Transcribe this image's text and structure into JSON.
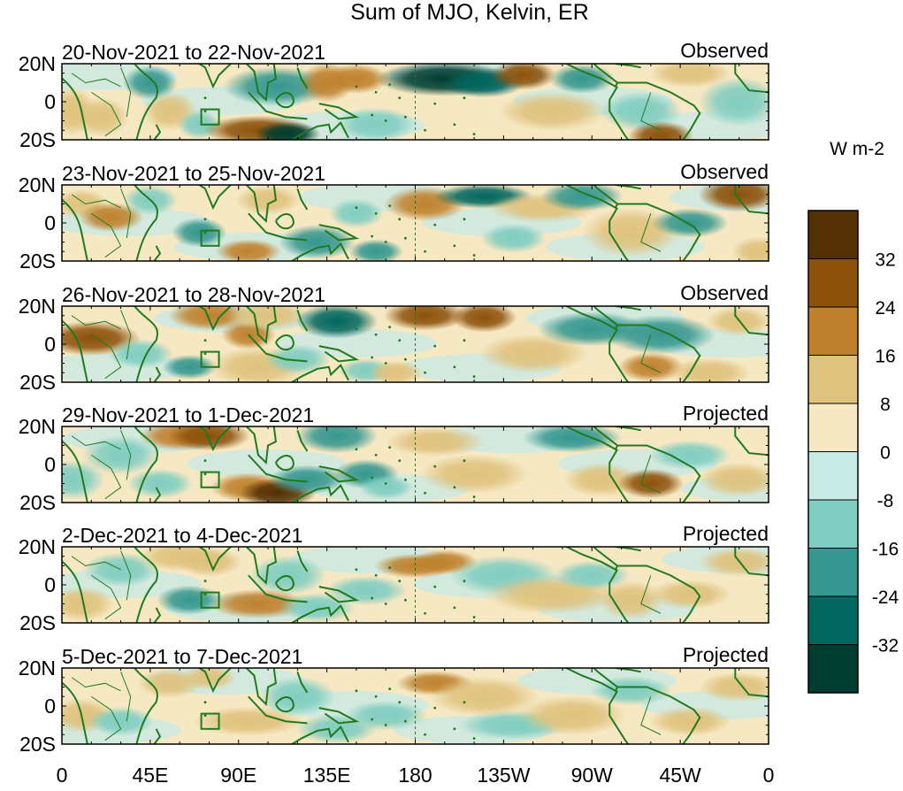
{
  "chart_data": {
    "type": "heatmap",
    "title": "Sum of MJO, Kelvin, ER",
    "units": "W m-2",
    "x_tick_labels": [
      "0",
      "45E",
      "90E",
      "135E",
      "180",
      "135W",
      "90W",
      "45W",
      "0"
    ],
    "x_ticks_deg": [
      0,
      45,
      90,
      135,
      180,
      225,
      270,
      315,
      360
    ],
    "y_tick_labels": [
      "20N",
      "0",
      "20S"
    ],
    "y_ticks_deg": [
      20,
      0,
      -20
    ],
    "xlim": [
      0,
      360
    ],
    "ylim": [
      -20,
      20
    ],
    "reference_line_lon": 180,
    "colorbar": {
      "levels": [
        "32",
        "24",
        "16",
        "8",
        "0",
        "-8",
        "-16",
        "-24",
        "-32"
      ],
      "colors": [
        "#543005",
        "#8c510a",
        "#bf812d",
        "#dfc27d",
        "#f6e8c3",
        "#c7eae5",
        "#80cdc1",
        "#35978f",
        "#01665e",
        "#003c30"
      ]
    },
    "coast_color": "#1f7a1f",
    "panels": [
      {
        "date_range": "20-Nov-2021 to 22-Nov-2021",
        "status": "Observed",
        "blobs": [
          [
            5,
            -5,
            9,
            10,
            0.35
          ],
          [
            20,
            -8,
            10,
            8,
            0.3
          ],
          [
            45,
            10,
            10,
            7,
            -0.45
          ],
          [
            55,
            -5,
            10,
            8,
            0.25
          ],
          [
            70,
            -12,
            8,
            6,
            -0.4
          ],
          [
            100,
            -15,
            20,
            6,
            0.75
          ],
          [
            115,
            -17,
            12,
            5,
            -0.9
          ],
          [
            110,
            8,
            20,
            8,
            -0.45
          ],
          [
            135,
            10,
            10,
            8,
            0.5
          ],
          [
            150,
            12,
            12,
            6,
            0.45
          ],
          [
            160,
            -12,
            15,
            7,
            -0.3
          ],
          [
            195,
            12,
            25,
            7,
            -0.95
          ],
          [
            215,
            10,
            15,
            6,
            -0.7
          ],
          [
            235,
            14,
            12,
            6,
            0.7
          ],
          [
            265,
            12,
            12,
            6,
            -0.5
          ],
          [
            250,
            -5,
            20,
            8,
            0.35
          ],
          [
            295,
            -5,
            15,
            8,
            -0.3
          ],
          [
            305,
            -18,
            12,
            6,
            0.8
          ],
          [
            320,
            15,
            15,
            6,
            0.3
          ],
          [
            345,
            0,
            15,
            10,
            -0.3
          ]
        ]
      },
      {
        "date_range": "23-Nov-2021 to 25-Nov-2021",
        "status": "Observed",
        "blobs": [
          [
            10,
            10,
            10,
            6,
            0.3
          ],
          [
            25,
            3,
            12,
            6,
            0.55
          ],
          [
            45,
            12,
            10,
            6,
            -0.35
          ],
          [
            70,
            -5,
            10,
            6,
            -0.45
          ],
          [
            95,
            -15,
            12,
            5,
            0.6
          ],
          [
            130,
            -10,
            14,
            7,
            -0.45
          ],
          [
            105,
            12,
            12,
            6,
            0.35
          ],
          [
            150,
            5,
            10,
            6,
            -0.35
          ],
          [
            160,
            -15,
            10,
            5,
            -0.55
          ],
          [
            185,
            10,
            15,
            7,
            0.6
          ],
          [
            215,
            14,
            18,
            5,
            -0.8
          ],
          [
            245,
            8,
            20,
            6,
            0.4
          ],
          [
            265,
            14,
            15,
            6,
            -0.55
          ],
          [
            230,
            -8,
            12,
            6,
            -0.35
          ],
          [
            290,
            -5,
            18,
            10,
            0.35
          ],
          [
            320,
            0,
            14,
            6,
            -0.5
          ],
          [
            345,
            15,
            15,
            7,
            0.75
          ],
          [
            355,
            -15,
            10,
            6,
            0.35
          ]
        ]
      },
      {
        "date_range": "26-Nov-2021 to 28-Nov-2021",
        "status": "Observed",
        "blobs": [
          [
            15,
            3,
            18,
            7,
            0.75
          ],
          [
            40,
            -5,
            12,
            6,
            -0.3
          ],
          [
            65,
            -12,
            10,
            5,
            -0.45
          ],
          [
            75,
            15,
            15,
            6,
            0.5
          ],
          [
            95,
            5,
            10,
            6,
            0.55
          ],
          [
            100,
            -12,
            18,
            8,
            0.4
          ],
          [
            105,
            15,
            15,
            6,
            0.35
          ],
          [
            120,
            -8,
            12,
            6,
            -0.4
          ],
          [
            140,
            12,
            15,
            7,
            -0.75
          ],
          [
            155,
            -14,
            10,
            5,
            -0.4
          ],
          [
            170,
            -15,
            10,
            5,
            0.35
          ],
          [
            185,
            15,
            15,
            6,
            0.65
          ],
          [
            215,
            14,
            12,
            6,
            0.7
          ],
          [
            240,
            -5,
            20,
            8,
            0.3
          ],
          [
            270,
            8,
            20,
            7,
            -0.45
          ],
          [
            305,
            5,
            20,
            8,
            -0.5
          ],
          [
            300,
            -12,
            12,
            6,
            0.6
          ],
          [
            330,
            -15,
            15,
            6,
            0.3
          ],
          [
            345,
            12,
            12,
            6,
            0.35
          ]
        ]
      },
      {
        "date_range": "29-Nov-2021 to 1-Dec-2021",
        "status": "Projected",
        "blobs": [
          [
            5,
            -8,
            12,
            8,
            -0.3
          ],
          [
            30,
            5,
            14,
            8,
            -0.25
          ],
          [
            50,
            -10,
            12,
            6,
            -0.3
          ],
          [
            60,
            15,
            15,
            6,
            0.5
          ],
          [
            75,
            15,
            15,
            6,
            0.75
          ],
          [
            95,
            -12,
            14,
            6,
            0.5
          ],
          [
            110,
            -15,
            14,
            6,
            0.85
          ],
          [
            125,
            -8,
            14,
            6,
            -0.45
          ],
          [
            140,
            15,
            15,
            7,
            -0.6
          ],
          [
            155,
            -5,
            12,
            6,
            -0.55
          ],
          [
            165,
            -12,
            10,
            5,
            -0.35
          ],
          [
            190,
            12,
            18,
            6,
            0.35
          ],
          [
            210,
            -5,
            20,
            8,
            0.3
          ],
          [
            260,
            14,
            18,
            6,
            -0.6
          ],
          [
            275,
            -8,
            14,
            7,
            0.4
          ],
          [
            300,
            -10,
            12,
            6,
            0.65
          ],
          [
            320,
            5,
            15,
            6,
            -0.3
          ],
          [
            345,
            -8,
            15,
            7,
            0.3
          ]
        ]
      },
      {
        "date_range": "2-Dec-2021 to 4-Dec-2021",
        "status": "Projected",
        "blobs": [
          [
            10,
            -10,
            12,
            7,
            0.35
          ],
          [
            30,
            8,
            14,
            7,
            -0.3
          ],
          [
            60,
            15,
            15,
            6,
            0.35
          ],
          [
            65,
            -8,
            12,
            6,
            -0.45
          ],
          [
            75,
            12,
            12,
            6,
            0.35
          ],
          [
            100,
            -10,
            18,
            6,
            0.55
          ],
          [
            115,
            5,
            14,
            8,
            -0.35
          ],
          [
            130,
            -12,
            14,
            6,
            -0.35
          ],
          [
            155,
            -3,
            15,
            6,
            -0.35
          ],
          [
            180,
            10,
            15,
            5,
            0.55
          ],
          [
            195,
            12,
            12,
            5,
            0.45
          ],
          [
            225,
            5,
            20,
            8,
            -0.3
          ],
          [
            250,
            -5,
            25,
            8,
            0.25
          ],
          [
            270,
            5,
            14,
            6,
            -0.4
          ],
          [
            290,
            -8,
            12,
            8,
            0.3
          ],
          [
            320,
            -5,
            15,
            6,
            0.25
          ],
          [
            345,
            12,
            15,
            6,
            0.4
          ]
        ]
      },
      {
        "date_range": "5-Dec-2021 to 7-Dec-2021",
        "status": "Projected",
        "blobs": [
          [
            10,
            -5,
            12,
            7,
            0.3
          ],
          [
            30,
            -8,
            12,
            6,
            -0.25
          ],
          [
            55,
            12,
            12,
            6,
            0.3
          ],
          [
            75,
            15,
            10,
            5,
            0.35
          ],
          [
            95,
            -8,
            20,
            6,
            0.35
          ],
          [
            120,
            5,
            14,
            8,
            -0.25
          ],
          [
            140,
            -12,
            15,
            6,
            -0.3
          ],
          [
            165,
            -5,
            15,
            6,
            -0.25
          ],
          [
            190,
            12,
            14,
            5,
            0.5
          ],
          [
            215,
            5,
            20,
            8,
            0.25
          ],
          [
            230,
            -10,
            20,
            6,
            -0.25
          ],
          [
            260,
            -5,
            20,
            8,
            0.25
          ],
          [
            290,
            8,
            15,
            6,
            -0.25
          ],
          [
            320,
            -8,
            15,
            6,
            0.25
          ],
          [
            345,
            10,
            15,
            6,
            0.3
          ]
        ]
      }
    ]
  }
}
